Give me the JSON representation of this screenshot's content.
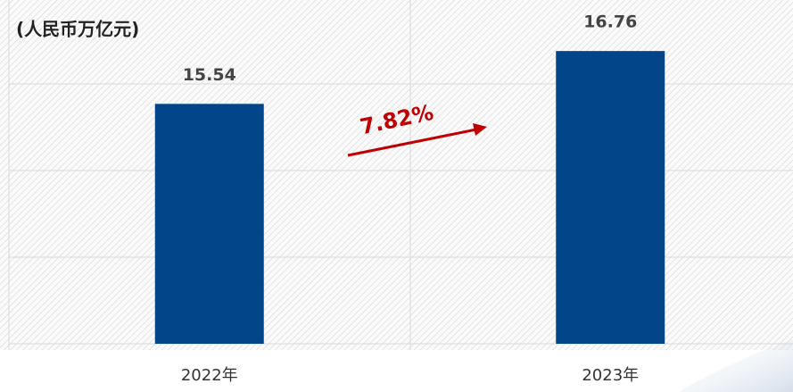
{
  "chart_data": {
    "type": "bar",
    "unit_label": "(人民币万亿元)",
    "categories": [
      "2022年",
      "2023年"
    ],
    "values": [
      15.54,
      16.76
    ],
    "color": "#024589",
    "ylim": [
      10,
      18
    ],
    "yticks": [
      10,
      12,
      14,
      16
    ],
    "grid": true,
    "annotation": {
      "text": "7.82%",
      "color": "#c00000"
    }
  }
}
